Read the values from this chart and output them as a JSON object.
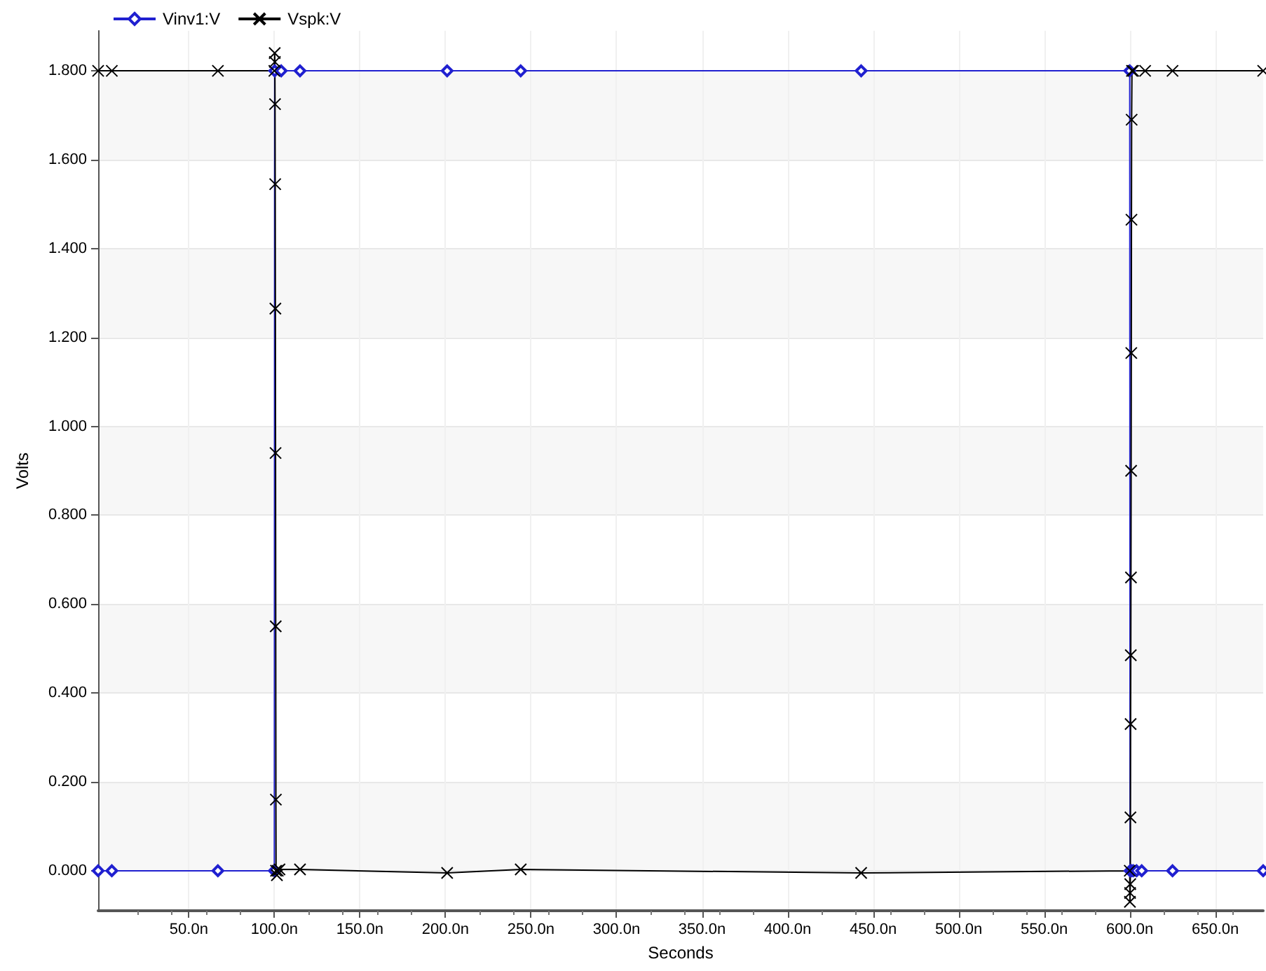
{
  "chart_data": {
    "type": "line",
    "xlabel": "Seconds",
    "ylabel": "Volts",
    "legend": "top left",
    "grid": true,
    "line_style": "solid",
    "xlim": [
      -3,
      678
    ],
    "ylim": [
      -0.09,
      1.89
    ],
    "xticks": [
      {
        "value": 50,
        "label": "50.0n"
      },
      {
        "value": 100,
        "label": "100.0n"
      },
      {
        "value": 150,
        "label": "150.0n"
      },
      {
        "value": 200,
        "label": "200.0n"
      },
      {
        "value": 250,
        "label": "250.0n"
      },
      {
        "value": 300,
        "label": "300.0n"
      },
      {
        "value": 350,
        "label": "350.0n"
      },
      {
        "value": 400,
        "label": "400.0n"
      },
      {
        "value": 450,
        "label": "450.0n"
      },
      {
        "value": 500,
        "label": "500.0n"
      },
      {
        "value": 550,
        "label": "550.0n"
      },
      {
        "value": 600,
        "label": "600.0n"
      },
      {
        "value": 650,
        "label": "650.0n"
      }
    ],
    "yticks": [
      {
        "value": 0,
        "label": "0.000"
      },
      {
        "value": 0.2,
        "label": "0.200"
      },
      {
        "value": 0.4,
        "label": "0.400"
      },
      {
        "value": 0.6,
        "label": "0.600"
      },
      {
        "value": 0.8,
        "label": "0.800"
      },
      {
        "value": 1,
        "label": "1.000"
      },
      {
        "value": 1.2,
        "label": "1.200"
      },
      {
        "value": 1.4,
        "label": "1.400"
      },
      {
        "value": 1.6,
        "label": "1.600"
      },
      {
        "value": 1.8,
        "label": "1.800"
      }
    ],
    "series": [
      {
        "name": "Vinv1:V",
        "color": "#2020d0",
        "marker": "diamond",
        "x": [
          -3,
          5,
          67,
          100,
          100.2,
          104,
          115,
          201,
          244,
          443,
          600,
          600.2,
          601,
          602,
          604,
          607,
          625,
          678
        ],
        "values": [
          0,
          0,
          0,
          0,
          1.8,
          1.8,
          1.8,
          1.8,
          1.8,
          1.8,
          1.8,
          0,
          0,
          0,
          0,
          0,
          0,
          0
        ]
      },
      {
        "name": "Vspk:V",
        "color": "#000000",
        "marker": "cross",
        "x": [
          -3,
          5,
          67,
          100,
          100.2,
          100.3,
          100.4,
          100.5,
          100.6,
          100.7,
          100.8,
          100.9,
          101,
          101.5,
          102,
          103,
          115,
          201,
          244,
          443,
          600,
          600.1,
          600.2,
          600.3,
          600.4,
          600.5,
          600.6,
          600.7,
          600.8,
          600.9,
          601,
          601.1,
          601.3,
          602,
          609,
          625,
          678
        ],
        "values": [
          1.8,
          1.8,
          1.8,
          1.8,
          1.84,
          1.82,
          1.725,
          1.545,
          1.265,
          0.94,
          0.55,
          0.16,
          0,
          -0.01,
          0,
          0.003,
          0.003,
          -0.005,
          0.003,
          -0.005,
          0,
          -0.07,
          -0.05,
          -0.03,
          0.12,
          0.33,
          0.485,
          0.66,
          0.9,
          1.165,
          1.465,
          1.69,
          1.8,
          1.8,
          1.8,
          1.8,
          1.8
        ]
      }
    ]
  }
}
